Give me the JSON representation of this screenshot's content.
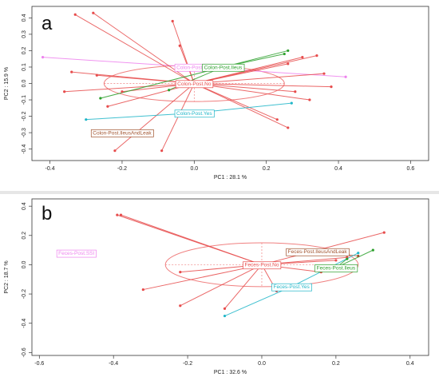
{
  "chart_data": [
    {
      "type": "scatter",
      "panel_label": "a",
      "xlabel": "PC1 :  28.1 %",
      "ylabel": "PC2 :  15.9 %",
      "xlim": [
        -0.45,
        0.65
      ],
      "ylim": [
        -0.47,
        0.47
      ],
      "xticks": [
        -0.4,
        -0.2,
        0.0,
        0.2,
        0.4,
        0.6
      ],
      "yticks": [
        -0.4,
        -0.3,
        -0.2,
        -0.1,
        0.0,
        0.1,
        0.2,
        0.3,
        0.4
      ],
      "ellipse": {
        "cx": 0.0,
        "cy": 0.0,
        "rx": 0.25,
        "ry": 0.11,
        "color": "#f08080"
      },
      "groups": [
        {
          "name": "Colon-Post.SSI",
          "color": "#ee82ee",
          "centroid": [
            0.0,
            0.1
          ],
          "points": [
            [
              -0.42,
              0.16
            ],
            [
              0.42,
              0.04
            ]
          ]
        },
        {
          "name": "Colon-Post.No",
          "color": "#e74c4c",
          "centroid": [
            0.0,
            0.0
          ],
          "points": [
            [
              -0.33,
              0.42
            ],
            [
              -0.28,
              0.43
            ],
            [
              -0.34,
              0.07
            ],
            [
              -0.36,
              -0.05
            ],
            [
              -0.27,
              0.05
            ],
            [
              -0.2,
              -0.05
            ],
            [
              -0.24,
              -0.14
            ],
            [
              -0.06,
              0.38
            ],
            [
              -0.04,
              0.23
            ],
            [
              0.26,
              0.12
            ],
            [
              0.28,
              -0.05
            ],
            [
              0.32,
              -0.1
            ],
            [
              0.3,
              0.16
            ],
            [
              0.34,
              0.17
            ],
            [
              0.38,
              -0.02
            ],
            [
              0.36,
              0.06
            ],
            [
              0.23,
              -0.22
            ],
            [
              0.26,
              -0.27
            ],
            [
              -0.09,
              -0.41
            ],
            [
              -0.22,
              -0.41
            ]
          ]
        },
        {
          "name": "Colon-Post.Ileus",
          "color": "#2ca02c",
          "centroid": [
            0.08,
            0.1
          ],
          "points": [
            [
              -0.26,
              -0.09
            ],
            [
              0.25,
              0.18
            ],
            [
              0.26,
              0.2
            ],
            [
              -0.07,
              -0.04
            ]
          ]
        },
        {
          "name": "Colon-Post.Yes",
          "color": "#1fb6c8",
          "centroid": [
            0.0,
            -0.18
          ],
          "points": [
            [
              -0.3,
              -0.22
            ],
            [
              0.27,
              -0.12
            ]
          ]
        },
        {
          "name": "Colon-Post.IleusAndLeak",
          "color": "#a0522d",
          "centroid": [
            -0.2,
            -0.3
          ],
          "points": []
        }
      ]
    },
    {
      "type": "scatter",
      "panel_label": "b",
      "xlabel": "PC1 :  32.6 %",
      "ylabel": "PC2 :  18.7 %",
      "xlim": [
        -0.62,
        0.45
      ],
      "ylim": [
        -0.62,
        0.45
      ],
      "xticks": [
        -0.6,
        -0.4,
        -0.2,
        0.0,
        0.2,
        0.4
      ],
      "yticks": [
        -0.6,
        -0.4,
        -0.2,
        0.0,
        0.2,
        0.4
      ],
      "ellipse": {
        "cx": 0.0,
        "cy": 0.0,
        "rx": 0.26,
        "ry": 0.15,
        "color": "#f08080"
      },
      "groups": [
        {
          "name": "Feces-Post.SSI",
          "color": "#ee82ee",
          "centroid": [
            -0.5,
            0.08
          ],
          "points": []
        },
        {
          "name": "Feces-Post.No",
          "color": "#e74c4c",
          "centroid": [
            0.0,
            0.0
          ],
          "points": [
            [
              -0.38,
              0.34
            ],
            [
              -0.39,
              0.34
            ],
            [
              -0.22,
              -0.05
            ],
            [
              -0.32,
              -0.17
            ],
            [
              -0.22,
              -0.28
            ],
            [
              -0.1,
              -0.3
            ],
            [
              0.04,
              -0.18
            ],
            [
              0.16,
              -0.05
            ],
            [
              0.2,
              0.03
            ],
            [
              0.23,
              0.05
            ],
            [
              0.33,
              0.22
            ]
          ]
        },
        {
          "name": "Feces-Post.IleusAndLeak",
          "color": "#a0522d",
          "centroid": [
            0.15,
            0.09
          ],
          "points": [
            [
              0.26,
              0.06
            ]
          ]
        },
        {
          "name": "Feces-Post.Ileus",
          "color": "#2ca02c",
          "centroid": [
            0.2,
            -0.02
          ],
          "points": [
            [
              0.3,
              0.1
            ],
            [
              0.23,
              0.04
            ]
          ]
        },
        {
          "name": "Feces-Post.Yes",
          "color": "#1fb6c8",
          "centroid": [
            0.08,
            -0.15
          ],
          "points": [
            [
              -0.1,
              -0.35
            ],
            [
              0.26,
              0.08
            ]
          ]
        }
      ]
    }
  ]
}
